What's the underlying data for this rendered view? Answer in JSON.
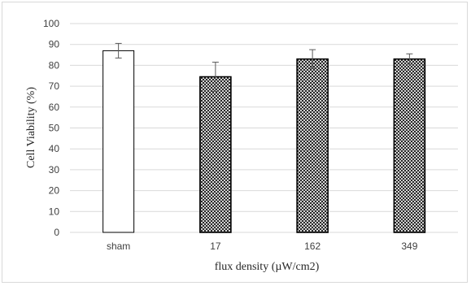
{
  "chart_data": {
    "type": "bar",
    "categories": [
      "sham",
      "17",
      "162",
      "349"
    ],
    "values": [
      87,
      74.5,
      83,
      83
    ],
    "error": [
      3.5,
      7,
      4.5,
      2.5
    ],
    "fill_patterns": [
      "none",
      "crosshatch",
      "crosshatch",
      "crosshatch"
    ],
    "xlabel": "flux density (µW/cm2)",
    "ylabel": "Cell Viability (%)",
    "ylim": [
      0,
      100
    ],
    "yticks": [
      0,
      10,
      20,
      30,
      40,
      50,
      60,
      70,
      80,
      90,
      100
    ],
    "grid": true,
    "legend": "none",
    "colors": {
      "grid": "#d9d9d9",
      "bar_edge": "#000000",
      "hatch": "#000000",
      "error_bar": "#595959"
    }
  }
}
